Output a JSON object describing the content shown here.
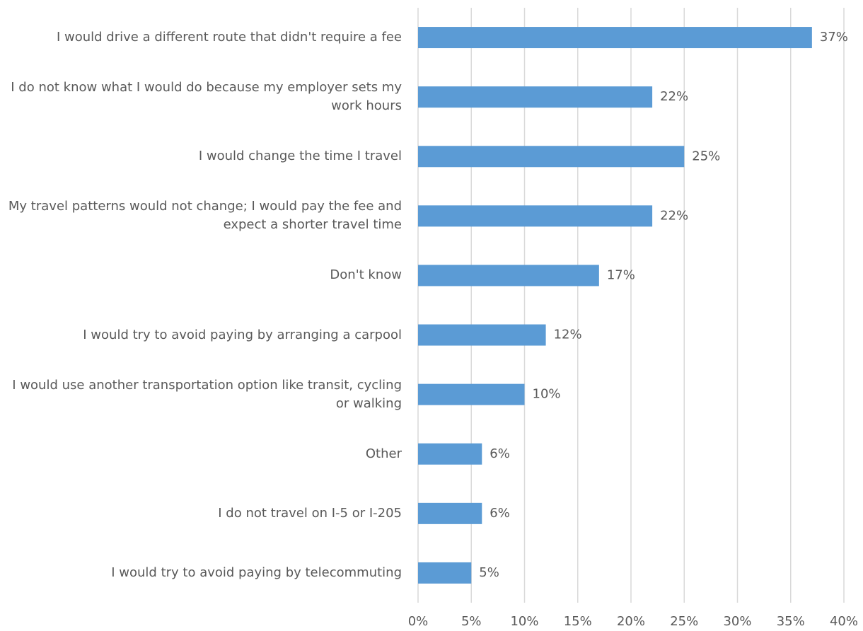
{
  "chart_data": {
    "type": "bar",
    "orientation": "horizontal",
    "categories": [
      "I would drive a different route that didn't require a fee",
      "I do not know what I would do because my employer sets my work hours",
      "I would change the time I travel",
      "My travel patterns would not change; I would pay the fee and expect a shorter travel time",
      "Don't know",
      "I would try to avoid paying by arranging a carpool",
      "I would use another transportation option like transit, cycling or walking",
      "Other",
      "I do not travel on I-5 or I-205",
      "I would try to avoid paying by telecommuting"
    ],
    "values": [
      37,
      22,
      25,
      22,
      17,
      12,
      10,
      6,
      6,
      5
    ],
    "value_labels": [
      "37%",
      "22%",
      "25%",
      "22%",
      "17%",
      "12%",
      "10%",
      "6%",
      "6%",
      "5%"
    ],
    "color": "#5b9bd5",
    "xlim": [
      0,
      40
    ],
    "xticks": [
      {
        "value": 0,
        "label": "0%"
      },
      {
        "value": 5,
        "label": "5%"
      },
      {
        "value": 10,
        "label": "10%"
      },
      {
        "value": 15,
        "label": "15%"
      },
      {
        "value": 20,
        "label": "20%"
      },
      {
        "value": 25,
        "label": "25%"
      },
      {
        "value": 30,
        "label": "30%"
      },
      {
        "value": 35,
        "label": "35%"
      },
      {
        "value": 40,
        "label": "40%"
      }
    ],
    "grid": true
  }
}
